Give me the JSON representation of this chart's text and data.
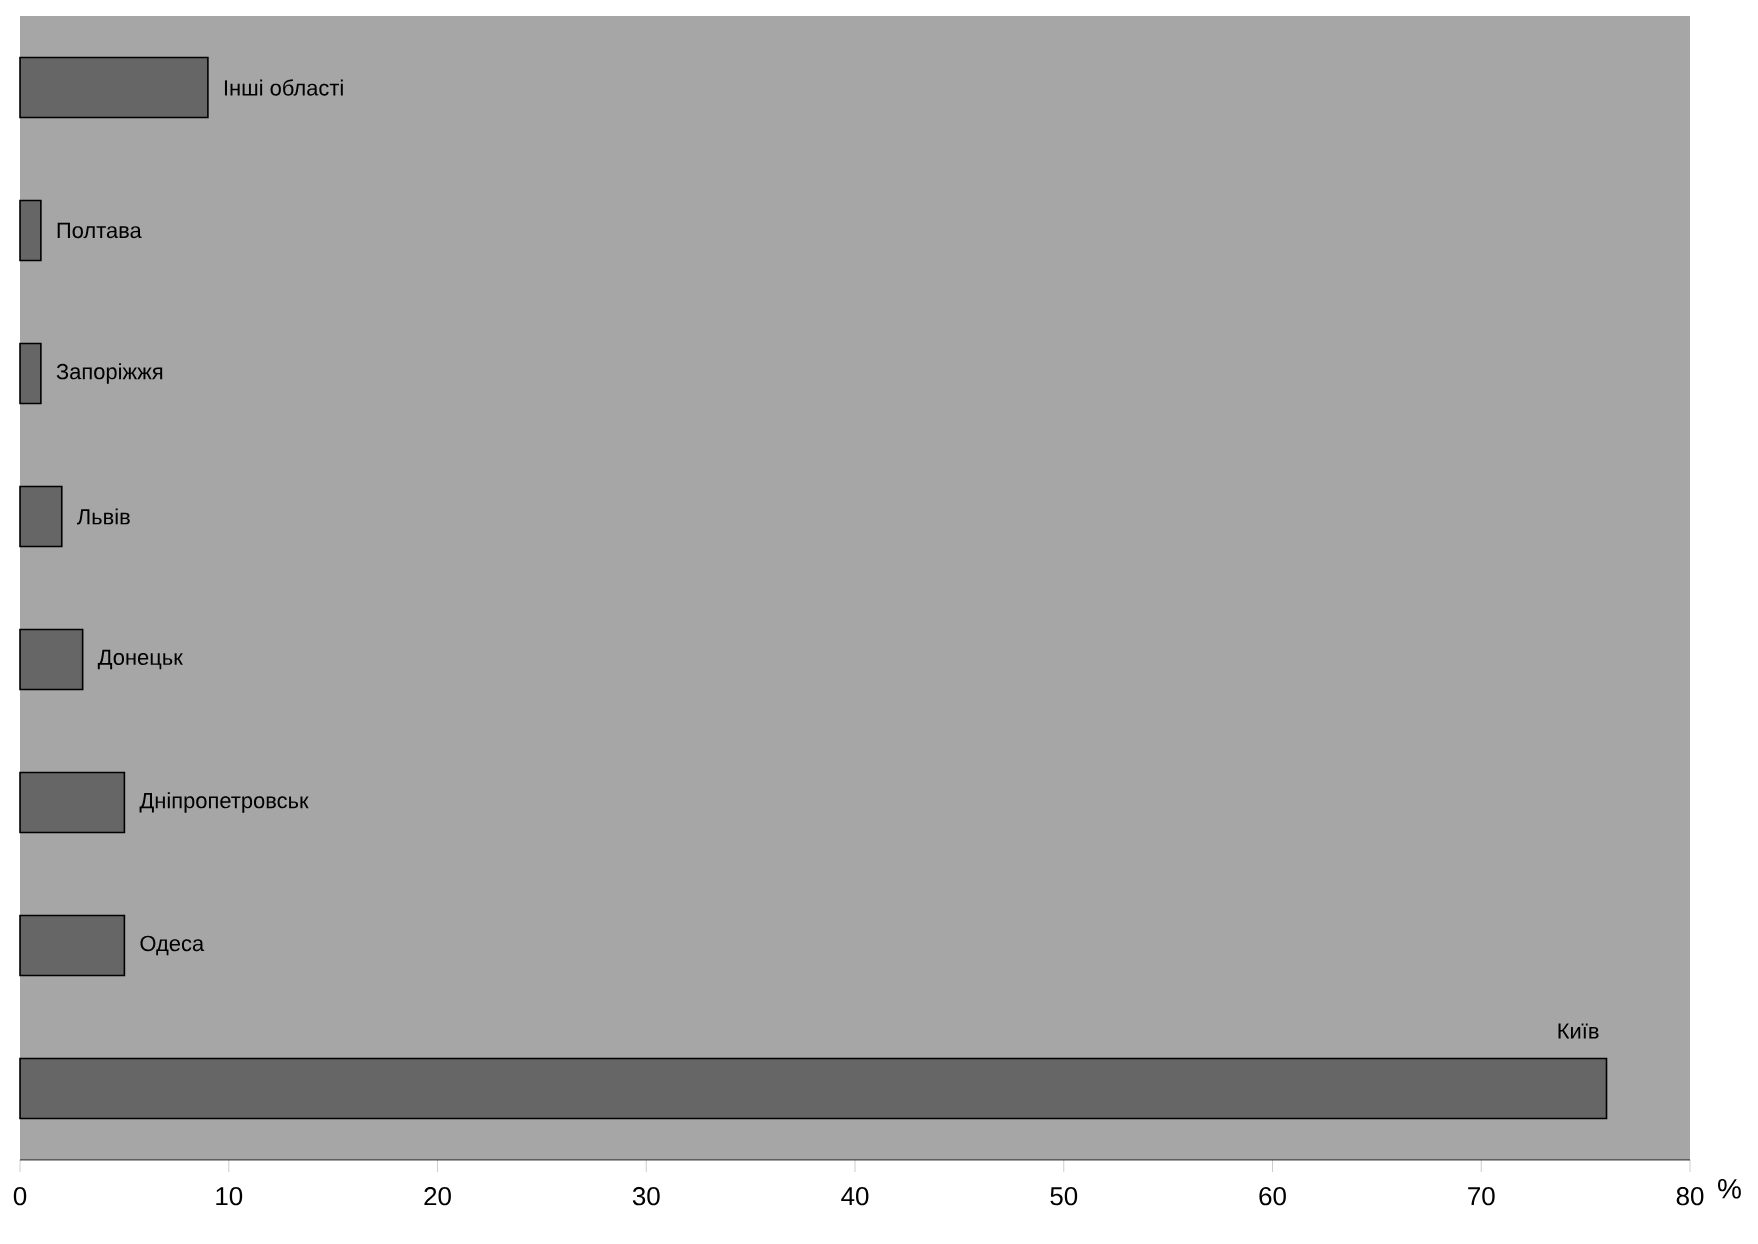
{
  "chart_data": {
    "type": "bar",
    "orientation": "horizontal",
    "categories": [
      "Інші області",
      "Полтава",
      "Запоріжжя",
      "Львів",
      "Донецьк",
      "Дніпропетровськ",
      "Одеса",
      "Київ"
    ],
    "values": [
      9,
      1,
      1,
      2,
      3,
      5,
      5,
      76
    ],
    "color": "#666666",
    "xlabel": "%",
    "xlim": [
      0,
      80
    ],
    "xticks": [
      0,
      10,
      20,
      30,
      40,
      50,
      60,
      70,
      80
    ]
  }
}
